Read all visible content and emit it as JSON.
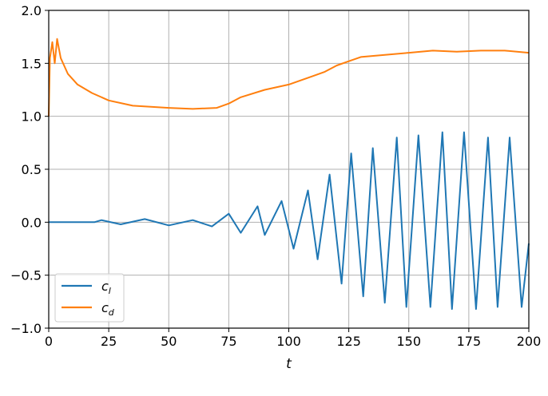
{
  "chart_data": {
    "type": "line",
    "xlabel": "t",
    "ylabel": "",
    "title": "",
    "xlim": [
      0,
      200
    ],
    "ylim": [
      -1.0,
      2.0
    ],
    "xticks": [
      "0",
      "25",
      "50",
      "75",
      "100",
      "125",
      "150",
      "175",
      "200"
    ],
    "yticks": [
      "−1.0",
      "−0.5",
      "0.0",
      "0.5",
      "1.0",
      "1.5",
      "2.0"
    ],
    "grid": true,
    "legend_position": "lower-left",
    "series": [
      {
        "name": "c_l",
        "label_main": "c",
        "label_sub": "l",
        "color": "#1f77b4",
        "points": [
          [
            0,
            0
          ],
          [
            19,
            0
          ],
          [
            22,
            0.02
          ],
          [
            30,
            -0.02
          ],
          [
            40,
            0.03
          ],
          [
            50,
            -0.03
          ],
          [
            60,
            0.02
          ],
          [
            68,
            -0.04
          ],
          [
            75,
            0.08
          ],
          [
            80,
            -0.1
          ],
          [
            87,
            0.15
          ],
          [
            90,
            -0.12
          ],
          [
            97,
            0.2
          ],
          [
            102,
            -0.25
          ],
          [
            108,
            0.3
          ],
          [
            112,
            -0.35
          ],
          [
            117,
            0.45
          ],
          [
            122,
            -0.58
          ],
          [
            126,
            0.65
          ],
          [
            131,
            -0.7
          ],
          [
            135,
            0.7
          ],
          [
            140,
            -0.76
          ],
          [
            145,
            0.8
          ],
          [
            149,
            -0.8
          ],
          [
            154,
            0.82
          ],
          [
            159,
            -0.8
          ],
          [
            164,
            0.85
          ],
          [
            168,
            -0.82
          ],
          [
            173,
            0.85
          ],
          [
            178,
            -0.82
          ],
          [
            183,
            0.8
          ],
          [
            187,
            -0.8
          ],
          [
            192,
            0.8
          ],
          [
            197,
            -0.8
          ],
          [
            200,
            -0.2
          ]
        ]
      },
      {
        "name": "c_d",
        "label_main": "c",
        "label_sub": "d",
        "color": "#ff7f0e",
        "points": [
          [
            0,
            1.0
          ],
          [
            0.5,
            1.55
          ],
          [
            1.5,
            1.7
          ],
          [
            2.5,
            1.5
          ],
          [
            3.5,
            1.73
          ],
          [
            5,
            1.55
          ],
          [
            8,
            1.4
          ],
          [
            12,
            1.3
          ],
          [
            18,
            1.22
          ],
          [
            25,
            1.15
          ],
          [
            35,
            1.1
          ],
          [
            50,
            1.08
          ],
          [
            60,
            1.07
          ],
          [
            70,
            1.08
          ],
          [
            75,
            1.12
          ],
          [
            80,
            1.18
          ],
          [
            90,
            1.25
          ],
          [
            100,
            1.3
          ],
          [
            110,
            1.38
          ],
          [
            115,
            1.42
          ],
          [
            120,
            1.48
          ],
          [
            125,
            1.52
          ],
          [
            130,
            1.56
          ],
          [
            140,
            1.58
          ],
          [
            150,
            1.6
          ],
          [
            160,
            1.62
          ],
          [
            170,
            1.61
          ],
          [
            180,
            1.62
          ],
          [
            190,
            1.62
          ],
          [
            200,
            1.6
          ]
        ]
      }
    ]
  }
}
